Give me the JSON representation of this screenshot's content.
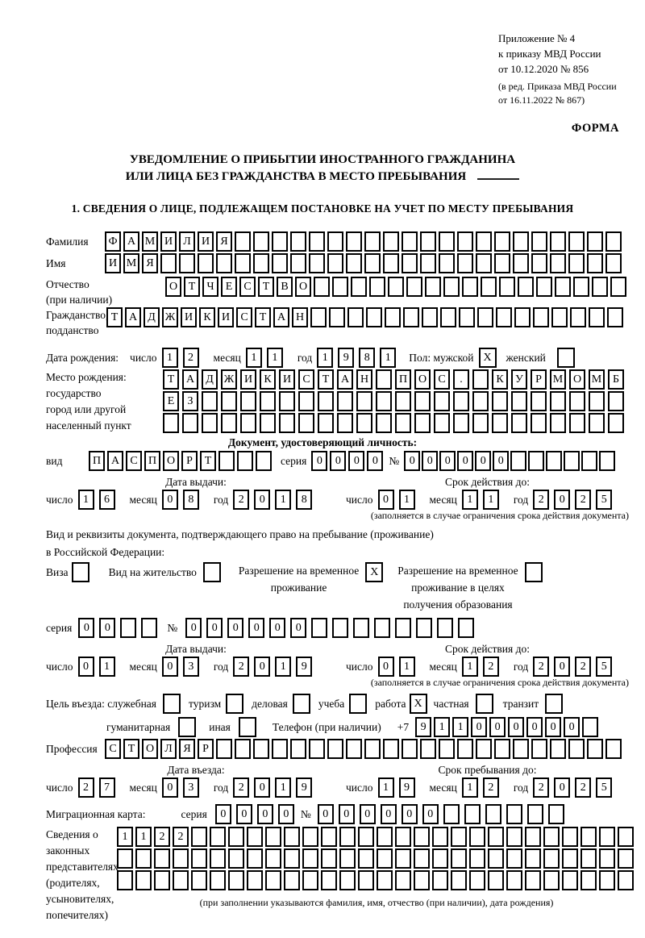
{
  "labels": {
    "day": "число",
    "month": "месяц",
    "year": "год",
    "series": "серия",
    "no": "№",
    "issue_date": "Дата выдачи:",
    "valid_until": "Срок действия до:",
    "restriction_note": "(заполняется в случае ограничения срока действия документа)"
  },
  "appendix": {
    "l1": "Приложение № 4",
    "l2": "к приказу МВД России",
    "l3": "от 10.12.2020 № 856",
    "l4": "(в ред. Приказа МВД России",
    "l5": "от 16.11.2022 № 867)",
    "form": "ФОРМА"
  },
  "title": {
    "l1": "УВЕДОМЛЕНИЕ О ПРИБЫТИИ ИНОСТРАННОГО ГРАЖДАНИНА",
    "l2": "ИЛИ ЛИЦА БЕЗ ГРАЖДАНСТВА В МЕСТО ПРЕБЫВАНИЯ"
  },
  "section1_heading": "1. СВЕДЕНИЯ О ЛИЦЕ, ПОДЛЕЖАЩЕМ ПОСТАНОВКЕ НА УЧЕТ ПО МЕСТУ ПРЕБЫВАНИЯ",
  "person": {
    "surname_label": "Фамилия",
    "surname": {
      "text": "ФАМИЛИЯ",
      "total": 28
    },
    "name_label": "Имя",
    "name": {
      "text": "ИМЯ",
      "total": 28
    },
    "patronymic_label": "Отчество",
    "patronymic_note": "(при наличии)",
    "patronymic": {
      "text": "ОТЧЕСТВО",
      "total": 25
    },
    "citizenship_label1": "Гражданство,",
    "citizenship_label2": "подданство",
    "citizenship": {
      "text": "ТАДЖИКИСТАН",
      "total": 28
    },
    "birth_date_label": "Дата рождения:",
    "birth_day": {
      "text": "12",
      "total": 2
    },
    "birth_month": {
      "text": "11",
      "total": 2
    },
    "birth_year": {
      "text": "1981",
      "total": 4
    },
    "sex_male_label": "Пол: мужской",
    "sex_male": "X",
    "sex_female_label": "женский",
    "sex_female": "",
    "birth_place_label1": "Место рождения:",
    "birth_place_label2": "государство",
    "birth_place_label3": "город или другой",
    "birth_place_label4": "населенный пункт",
    "birth_place_row1": {
      "text": "ТАДЖИКИСТАН ПОС. КУРМОМБ",
      "total": 24
    },
    "birth_place_row2": {
      "text": "ЕЗ",
      "total": 24
    },
    "birth_place_row3": {
      "text": "",
      "total": 24
    }
  },
  "identity_doc": {
    "header": "Документ, удостоверяющий личность:",
    "kind_label": "вид",
    "kind": {
      "text": "ПАСПОРТ",
      "total": 10
    },
    "series": {
      "text": "0000",
      "total": 4
    },
    "number": {
      "text": "000000",
      "total": 12
    },
    "issue_day": {
      "text": "16",
      "total": 2
    },
    "issue_month": {
      "text": "08",
      "total": 2
    },
    "issue_year": {
      "text": "2018",
      "total": 4
    },
    "expiry_day": {
      "text": "01",
      "total": 2
    },
    "expiry_month": {
      "text": "11",
      "total": 2
    },
    "expiry_year": {
      "text": "2025",
      "total": 4
    }
  },
  "residence_doc": {
    "intro1": "Вид и реквизиты документа, подтверждающего право на пребывание (проживание)",
    "intro2": "в Российской Федерации:",
    "visa_label": "Виза",
    "visa": "",
    "residence_permit_label": "Вид на жительство",
    "residence_permit": "",
    "temp_residence_label1": "Разрешение на временное",
    "temp_residence_label2": "проживание",
    "temp_residence": "X",
    "temp_edu_label1": "Разрешение на временное",
    "temp_edu_label2": "проживание в целях",
    "temp_edu_label3": "получения образования",
    "temp_edu": "",
    "series": {
      "text": "00",
      "total": 4
    },
    "number": {
      "text": "000000",
      "total": 14
    },
    "issue_day": {
      "text": "01",
      "total": 2
    },
    "issue_month": {
      "text": "03",
      "total": 2
    },
    "issue_year": {
      "text": "2019",
      "total": 4
    },
    "expiry_day": {
      "text": "01",
      "total": 2
    },
    "expiry_month": {
      "text": "12",
      "total": 2
    },
    "expiry_year": {
      "text": "2025",
      "total": 4
    }
  },
  "visit": {
    "purpose_label": "Цель въезда: служебная",
    "official": "",
    "tourism_label": "туризм",
    "tourism": "",
    "business_label": "деловая",
    "business": "",
    "study_label": "учеба",
    "study": "",
    "work_label": "работа",
    "work": "X",
    "private_label": "частная",
    "private": "",
    "transit_label": "транзит",
    "transit": "",
    "humanitarian_label": "гуманитарная",
    "humanitarian": "",
    "other_label": "иная",
    "other": "",
    "phone_label": "Телефон (при наличии)",
    "phone_prefix": "+7",
    "phone": {
      "text": "911000000",
      "total": 10
    },
    "profession_label": "Профессия",
    "profession": {
      "text": "СТОЛЯР",
      "total": 28
    },
    "entry_date_label": "Дата въезда:",
    "stay_until_label": "Срок пребывания до:",
    "entry_day": {
      "text": "27",
      "total": 2
    },
    "entry_month": {
      "text": "03",
      "total": 2
    },
    "entry_year": {
      "text": "2019",
      "total": 4
    },
    "stay_day": {
      "text": "19",
      "total": 2
    },
    "stay_month": {
      "text": "12",
      "total": 2
    },
    "stay_year": {
      "text": "2025",
      "total": 4
    }
  },
  "migration_card": {
    "label": "Миграционная карта:",
    "series": {
      "text": "0000",
      "total": 4
    },
    "number": {
      "text": "000000",
      "total": 12
    }
  },
  "representatives": {
    "l1": "Сведения о",
    "l2": "законных",
    "l3": "представителях",
    "l4": "(родителях,",
    "l5": "усыновителях,",
    "l6": "попечителях)",
    "row1": {
      "text": "1122",
      "total": 28
    },
    "row2": {
      "text": "",
      "total": 28
    },
    "row3": {
      "text": "",
      "total": 28
    },
    "note": "(при заполнении указываются фамилия, имя, отчество (при наличии), дата рождения)"
  }
}
